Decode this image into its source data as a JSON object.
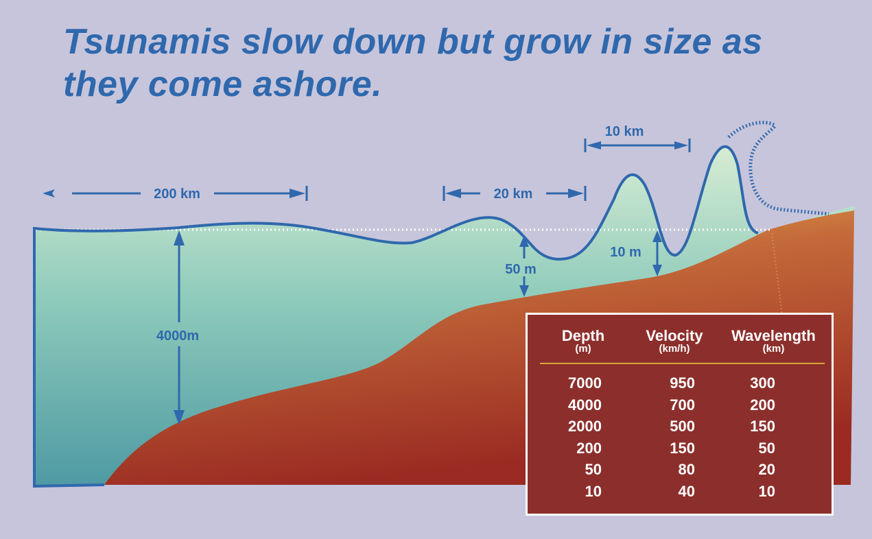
{
  "title": "Tsunamis slow down but grow in size as they come ashore.",
  "labels": {
    "width_200km": "200 km",
    "width_20km": "20 km",
    "width_10km": "10 km",
    "depth_4000m": "4000m",
    "depth_50m": "50 m",
    "depth_10m": "10 m"
  },
  "colors": {
    "title": "#2f68ad",
    "background": "#c7c5db",
    "water_top": "#d6ecd3",
    "water_bottom": "#4f9aa3",
    "seabed_light": "#e8b04a",
    "seabed_dark": "#9a2a22",
    "table_bg": "#8c2f2c",
    "table_rule": "#d7a73a"
  },
  "table": {
    "headers": [
      {
        "name": "Depth",
        "unit": "(m)"
      },
      {
        "name": "Velocity",
        "unit": "(km/h)"
      },
      {
        "name": "Wavelength",
        "unit": "(km)"
      }
    ],
    "rows": [
      [
        "7000",
        "950",
        "300"
      ],
      [
        "4000",
        "700",
        "200"
      ],
      [
        "2000",
        "500",
        "150"
      ],
      [
        "200",
        "150",
        "50"
      ],
      [
        "50",
        "80",
        "20"
      ],
      [
        "10",
        "40",
        "10"
      ]
    ]
  }
}
